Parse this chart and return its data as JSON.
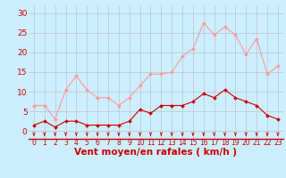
{
  "x": [
    0,
    1,
    2,
    3,
    4,
    5,
    6,
    7,
    8,
    9,
    10,
    11,
    12,
    13,
    14,
    15,
    16,
    17,
    18,
    19,
    20,
    21,
    22,
    23
  ],
  "rafales": [
    6.5,
    6.5,
    3.0,
    10.5,
    14.0,
    10.5,
    8.5,
    8.5,
    6.5,
    8.5,
    11.5,
    14.5,
    14.5,
    15.0,
    19.0,
    21.0,
    27.5,
    24.5,
    26.5,
    24.5,
    19.5,
    23.5,
    14.5,
    16.5
  ],
  "moyen": [
    1.5,
    2.5,
    1.0,
    2.5,
    2.5,
    1.5,
    1.5,
    1.5,
    1.5,
    2.5,
    5.5,
    4.5,
    6.5,
    6.5,
    6.5,
    7.5,
    9.5,
    8.5,
    10.5,
    8.5,
    7.5,
    6.5,
    4.0,
    3.0
  ],
  "line_color_rafales": "#FF9999",
  "line_color_moyen": "#CC0000",
  "bg_color": "#CCEEFF",
  "grid_color": "#BBBBBB",
  "xlabel": "Vent moyen/en rafales ( km/h )",
  "yticks": [
    0,
    5,
    10,
    15,
    20,
    25,
    30
  ],
  "ylim": [
    -2,
    32
  ],
  "xlim": [
    -0.5,
    23.5
  ],
  "arrow_color": "#CC0000",
  "axis_line_color": "#CC0000",
  "tick_label_color": "#CC0000",
  "xlabel_color": "#CC0000",
  "xlabel_fontsize": 7.5,
  "ytick_fontsize": 6.5,
  "xtick_fontsize": 5.5
}
